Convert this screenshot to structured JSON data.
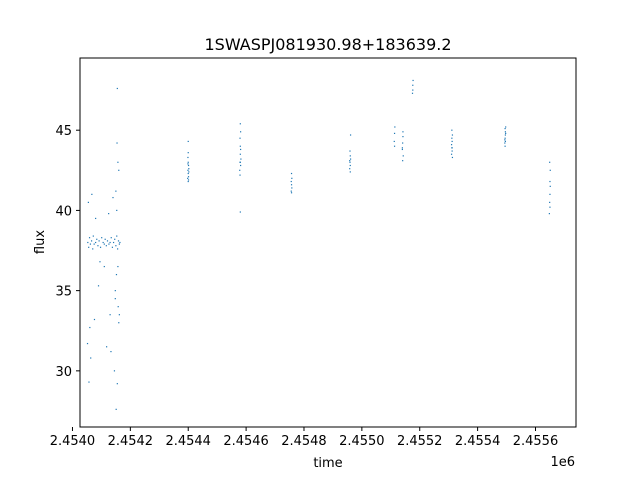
{
  "chart_data": {
    "type": "scatter",
    "title": "1SWASPJ081930.98+183639.2",
    "xlabel": "time",
    "ylabel": "flux",
    "x_offset_label": "1e6",
    "xlim": [
      2454026,
      2455740
    ],
    "ylim": [
      26.5,
      49.5
    ],
    "x_ticks": [
      2454000,
      2454200,
      2454400,
      2454600,
      2454800,
      2455000,
      2455200,
      2455400,
      2455600
    ],
    "x_tick_labels": [
      "2.4540",
      "2.4542",
      "2.4544",
      "2.4546",
      "2.4548",
      "2.4550",
      "2.4552",
      "2.4554",
      "2.4556"
    ],
    "y_ticks": [
      30,
      35,
      40,
      45
    ],
    "y_tick_labels": [
      "30",
      "35",
      "40",
      "45"
    ],
    "grid": false,
    "marker_color": "#1f77b4",
    "series": [
      {
        "x": [
          2454053,
          2454056,
          2454059,
          2454062,
          2454066,
          2454070,
          2454072,
          2454075,
          2454080,
          2454084,
          2454088,
          2454092,
          2454097,
          2454101,
          2454106,
          2454110,
          2454113,
          2454117,
          2454121,
          2454126,
          2454130,
          2454134,
          2454138,
          2454142,
          2454146,
          2454150,
          2454153,
          2454156,
          2454159,
          2454162,
          2454164,
          2454055,
          2454067,
          2454080,
          2454095,
          2454110,
          2454125,
          2454140,
          2454150,
          2454160,
          2454154,
          2454157,
          2454148,
          2454158,
          2454162,
          2454052,
          2454060,
          2454076,
          2454090,
          2454118,
          2454133,
          2454145,
          2454155,
          2454160,
          2454151,
          2454155,
          2454152,
          2454148,
          2454057,
          2454063,
          2454130,
          2454153,
          2454157
        ],
        "y": [
          38.0,
          37.7,
          38.3,
          37.9,
          38.1,
          37.6,
          38.4,
          37.9,
          38.0,
          38.2,
          37.8,
          38.1,
          37.7,
          38.3,
          38.0,
          37.9,
          38.2,
          37.8,
          38.1,
          37.9,
          38.0,
          38.3,
          37.7,
          38.0,
          38.2,
          37.8,
          38.4,
          37.6,
          38.1,
          37.9,
          38.0,
          40.5,
          41.0,
          39.5,
          36.8,
          36.5,
          39.8,
          40.8,
          41.2,
          42.5,
          44.2,
          43.0,
          34.5,
          34.0,
          33.5,
          31.7,
          32.7,
          33.2,
          35.3,
          31.5,
          31.2,
          30.0,
          29.2,
          33.0,
          27.6,
          47.6,
          36.0,
          35.0,
          29.3,
          30.8,
          33.5,
          40.0,
          36.5
        ]
      },
      {
        "x": [
          2454398,
          2454399,
          2454400,
          2454400,
          2454401,
          2454401,
          2454402,
          2454399,
          2454400,
          2454401,
          2454400,
          2454399,
          2454402,
          2454400
        ],
        "y": [
          42.0,
          42.5,
          43.0,
          42.3,
          42.8,
          41.9,
          42.6,
          43.3,
          44.3,
          42.1,
          43.6,
          42.9,
          42.4,
          41.8
        ]
      },
      {
        "x": [
          2454578,
          2454579,
          2454580,
          2454580,
          2454581,
          2454581,
          2454579,
          2454580,
          2454582,
          2454580,
          2454579,
          2454581,
          2454580
        ],
        "y": [
          42.5,
          43.0,
          43.5,
          44.0,
          42.8,
          43.8,
          44.5,
          45.4,
          43.2,
          39.9,
          42.2,
          44.9,
          43.0
        ]
      },
      {
        "x": [
          2454756,
          2454757,
          2454758,
          2454757,
          2454758,
          2454756,
          2454757
        ],
        "y": [
          41.2,
          41.6,
          42.0,
          42.3,
          41.4,
          41.8,
          41.1
        ]
      },
      {
        "x": [
          2454958,
          2454959,
          2454960,
          2454960,
          2454961,
          2454959,
          2454960,
          2454961,
          2454958
        ],
        "y": [
          42.6,
          43.0,
          43.4,
          42.8,
          43.2,
          43.7,
          42.4,
          44.7,
          43.1
        ]
      },
      {
        "x": [
          2455112,
          2455113,
          2455114,
          2455140,
          2455141,
          2455142,
          2455143,
          2455141,
          2455142,
          2455140,
          2455113,
          2455175,
          2455176,
          2455177,
          2455176
        ],
        "y": [
          44.3,
          44.8,
          45.2,
          43.8,
          44.2,
          44.6,
          43.4,
          43.1,
          44.9,
          43.9,
          44.0,
          47.3,
          47.8,
          48.1,
          47.5
        ]
      },
      {
        "x": [
          2455310,
          2455311,
          2455312,
          2455313,
          2455311,
          2455312,
          2455310,
          2455313,
          2455311,
          2455312
        ],
        "y": [
          43.5,
          43.9,
          44.3,
          44.7,
          45.0,
          43.7,
          44.1,
          43.3,
          44.5,
          43.9
        ]
      },
      {
        "x": [
          2455494,
          2455495,
          2455496,
          2455497,
          2455495,
          2455496,
          2455494,
          2455497,
          2455495,
          2455496
        ],
        "y": [
          44.2,
          44.5,
          44.9,
          45.2,
          44.0,
          44.7,
          44.4,
          44.8,
          45.1,
          44.3
        ]
      },
      {
        "x": [
          2455648,
          2455649,
          2455650,
          2455650,
          2455651,
          2455649,
          2455650,
          2455651
        ],
        "y": [
          39.8,
          40.5,
          41.0,
          41.8,
          42.5,
          43.0,
          40.2,
          41.5
        ]
      }
    ]
  }
}
